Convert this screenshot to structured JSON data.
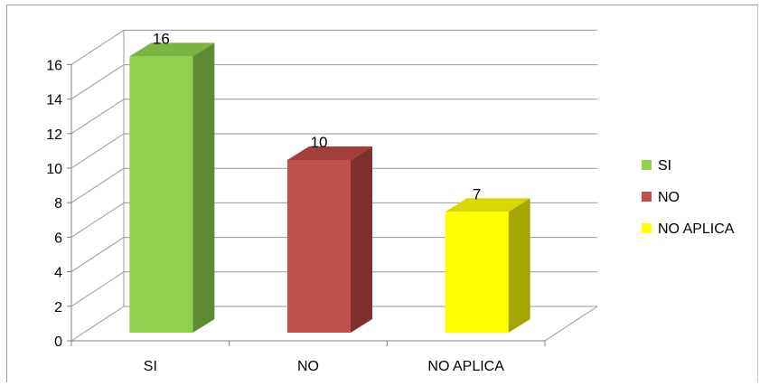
{
  "chart_data": {
    "type": "bar",
    "categories": [
      "SI",
      "NO",
      "NO APLICA"
    ],
    "values": [
      16,
      10,
      7
    ],
    "ylim": [
      0,
      16
    ],
    "yticks": [
      "0",
      "2",
      "4",
      "6",
      "8",
      "10",
      "12",
      "14",
      "16"
    ],
    "data_labels": [
      "16",
      "10",
      "7"
    ],
    "legend": [
      "SI",
      "NO",
      "NO APLICA"
    ],
    "legend_position": "right",
    "grid": true,
    "style": "3d-column",
    "colors": {
      "SI": {
        "front": "#92d050",
        "side": "#5e8a33",
        "top": "#7ab541"
      },
      "NO": {
        "front": "#c0504d",
        "side": "#7f2f2d",
        "top": "#a33f3c"
      },
      "NO APLICA": {
        "front": "#ffff00",
        "side": "#a6a600",
        "top": "#d8d800"
      }
    }
  }
}
